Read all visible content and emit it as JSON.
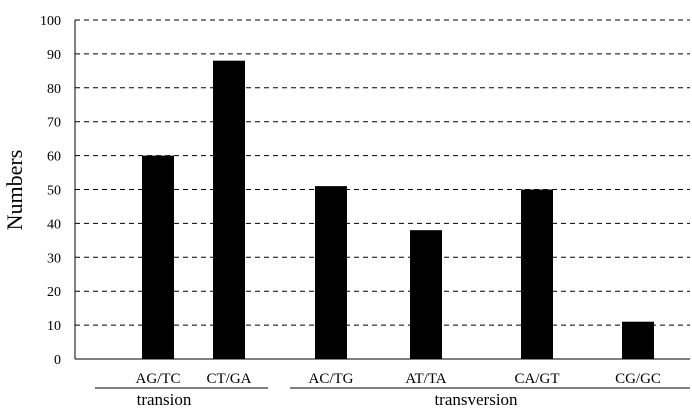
{
  "chart_data": {
    "type": "bar",
    "title": "",
    "xlabel": "",
    "ylabel": "Numbers",
    "ylim": [
      0,
      100
    ],
    "yticks": [
      0,
      10,
      20,
      30,
      40,
      50,
      60,
      70,
      80,
      90,
      100
    ],
    "grid": "horizontal-dashed",
    "categories": [
      "AG/TC",
      "CT/GA",
      "AC/TG",
      "AT/TA",
      "CA/GT",
      "CG/GC"
    ],
    "values": [
      60,
      88,
      51,
      38,
      50,
      11
    ],
    "bar_color": "#000000",
    "groups": [
      {
        "label": "transion",
        "categories": [
          "AG/TC",
          "CT/GA"
        ]
      },
      {
        "label": "transversion",
        "categories": [
          "AC/TG",
          "AT/TA",
          "CA/GT",
          "CG/GC"
        ]
      }
    ]
  }
}
